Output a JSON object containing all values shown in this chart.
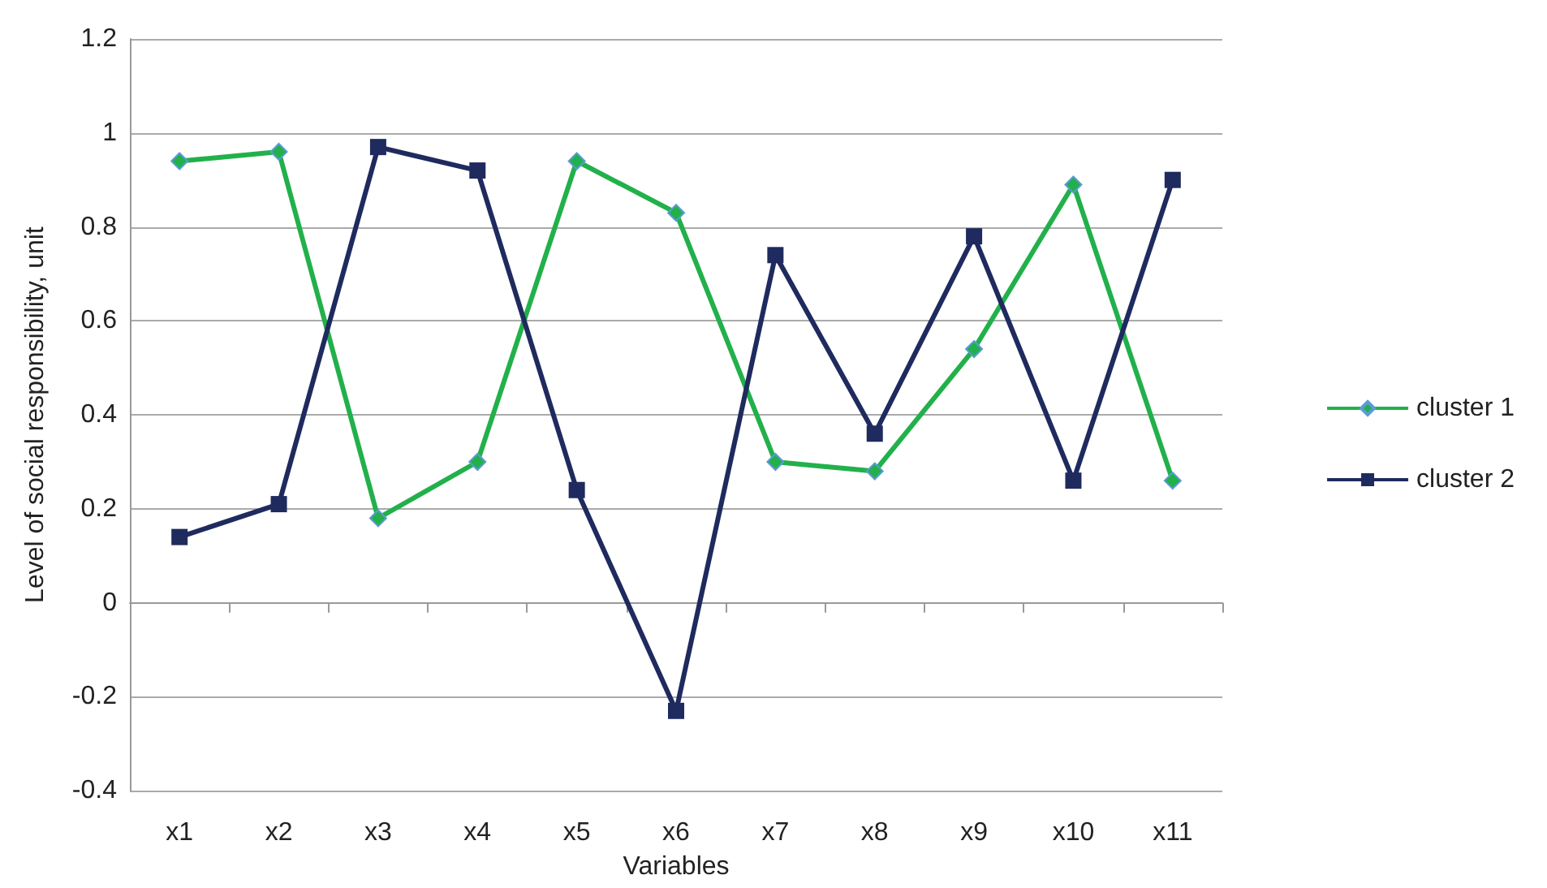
{
  "chart_data": {
    "type": "line",
    "xlabel": "Variables",
    "ylabel": "Level of social responsibility, unit",
    "categories": [
      "x1",
      "x2",
      "x3",
      "x4",
      "x5",
      "x6",
      "x7",
      "x8",
      "x9",
      "x10",
      "x11"
    ],
    "series": [
      {
        "name": "cluster 1",
        "color": "#22b04b",
        "marker": "diamond",
        "values": [
          0.94,
          0.96,
          0.18,
          0.3,
          0.94,
          0.83,
          0.3,
          0.28,
          0.54,
          0.89,
          0.26
        ]
      },
      {
        "name": "cluster 2",
        "color": "#1f2a5e",
        "marker": "square",
        "values": [
          0.14,
          0.21,
          0.97,
          0.92,
          0.24,
          -0.23,
          0.74,
          0.36,
          0.78,
          0.26,
          0.9
        ]
      }
    ],
    "ylim": [
      -0.4,
      1.2
    ],
    "yticks": [
      -0.4,
      -0.2,
      0,
      0.2,
      0.4,
      0.6,
      0.8,
      1,
      1.2
    ],
    "grid": "y",
    "legend": "right",
    "line_style": "solid"
  }
}
